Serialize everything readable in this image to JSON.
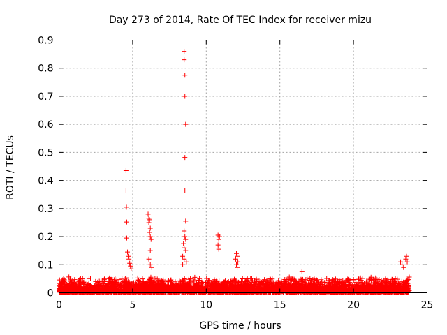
{
  "chart_data": {
    "type": "scatter",
    "title": "Day 273 of 2014, Rate Of TEC Index for receiver mizu",
    "xlabel": "GPS time / hours",
    "ylabel": "ROTI / TECUs",
    "xlim": [
      0,
      25
    ],
    "ylim": [
      0,
      0.9
    ],
    "xticks": [
      0,
      5,
      10,
      15,
      20,
      25
    ],
    "yticks": [
      0,
      0.1,
      0.2,
      0.3,
      0.4,
      0.5,
      0.6,
      0.7,
      0.8,
      0.9
    ],
    "xtick_labels": [
      "0",
      "5",
      "10",
      "15",
      "20",
      "25"
    ],
    "ytick_labels": [
      "0",
      "0.1",
      "0.2",
      "0.3",
      "0.4",
      "0.5",
      "0.6",
      "0.7",
      "0.8",
      "0.9"
    ],
    "grid": true,
    "marker": "+",
    "marker_color": "#ff0000",
    "background_level": {
      "x_range": [
        0,
        23.8
      ],
      "typical_max": 0.04,
      "samples_per_hour": 200
    },
    "series": [
      {
        "name": "ROTI",
        "points": [
          [
            4.55,
            0.435
          ],
          [
            4.55,
            0.363
          ],
          [
            4.58,
            0.305
          ],
          [
            4.6,
            0.252
          ],
          [
            4.6,
            0.195
          ],
          [
            4.65,
            0.145
          ],
          [
            4.7,
            0.13
          ],
          [
            4.75,
            0.12
          ],
          [
            4.8,
            0.105
          ],
          [
            4.85,
            0.095
          ],
          [
            4.9,
            0.085
          ],
          [
            6.05,
            0.28
          ],
          [
            6.1,
            0.265
          ],
          [
            6.15,
            0.26
          ],
          [
            6.1,
            0.25
          ],
          [
            6.2,
            0.23
          ],
          [
            6.15,
            0.215
          ],
          [
            6.2,
            0.2
          ],
          [
            6.25,
            0.19
          ],
          [
            6.2,
            0.15
          ],
          [
            6.1,
            0.12
          ],
          [
            6.2,
            0.1
          ],
          [
            6.3,
            0.09
          ],
          [
            8.5,
            0.86
          ],
          [
            8.5,
            0.83
          ],
          [
            8.55,
            0.775
          ],
          [
            8.55,
            0.7
          ],
          [
            8.6,
            0.6
          ],
          [
            8.55,
            0.482
          ],
          [
            8.55,
            0.363
          ],
          [
            8.6,
            0.255
          ],
          [
            8.5,
            0.22
          ],
          [
            8.55,
            0.2
          ],
          [
            8.6,
            0.19
          ],
          [
            8.45,
            0.175
          ],
          [
            8.5,
            0.16
          ],
          [
            8.6,
            0.15
          ],
          [
            8.4,
            0.13
          ],
          [
            8.5,
            0.12
          ],
          [
            8.65,
            0.11
          ],
          [
            8.4,
            0.1
          ],
          [
            10.8,
            0.205
          ],
          [
            10.9,
            0.2
          ],
          [
            10.85,
            0.19
          ],
          [
            10.8,
            0.17
          ],
          [
            10.85,
            0.155
          ],
          [
            12.05,
            0.14
          ],
          [
            12.1,
            0.13
          ],
          [
            12.0,
            0.12
          ],
          [
            12.15,
            0.11
          ],
          [
            12.05,
            0.1
          ],
          [
            12.1,
            0.09
          ],
          [
            16.5,
            0.075
          ],
          [
            23.2,
            0.11
          ],
          [
            23.3,
            0.1
          ],
          [
            23.6,
            0.13
          ],
          [
            23.55,
            0.12
          ],
          [
            23.65,
            0.11
          ],
          [
            23.4,
            0.09
          ]
        ]
      }
    ]
  }
}
